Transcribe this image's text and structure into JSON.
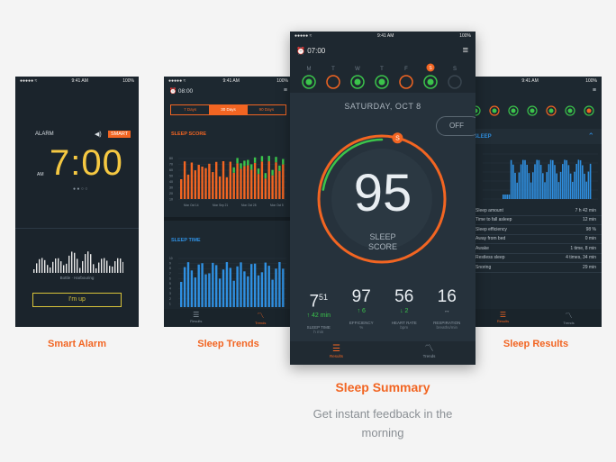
{
  "alarm": {
    "status_time": "9:41 AM",
    "battery": "100%",
    "alarm_label": "ALARM",
    "smart_badge": "SMART",
    "time": "7:00",
    "ampm": "AM",
    "waveform_label": "Bottle · Harbouring",
    "up_button": "I'm up"
  },
  "trends": {
    "status_time": "9:41 AM",
    "battery": "100%",
    "alarm_time": "08:00",
    "tabs": [
      "7 Days",
      "30 Days",
      "90 Days"
    ],
    "score_title": "SLEEP SCORE",
    "time_title": "SLEEP TIME",
    "score_y": [
      "80",
      "70",
      "60",
      "50",
      "40",
      "30",
      "20",
      "10"
    ],
    "score_x": [
      "Mon Oct 14",
      "Mon Sep 21",
      "Mon Oct 28",
      "Mon Oct 5"
    ],
    "time_y": [
      "10",
      "9",
      "8",
      "7",
      "6",
      "5",
      "4",
      "3",
      "2",
      "1"
    ],
    "nav": [
      "Results",
      "Trends"
    ]
  },
  "summary": {
    "status_time": "9:41 AM",
    "battery": "100%",
    "alarm_time": "07:00",
    "days": [
      "M",
      "T",
      "W",
      "T",
      "F",
      "S",
      "S"
    ],
    "day_badge": "S",
    "date": "SATURDAY, OCT 8",
    "toggle": "OFF",
    "score": "95",
    "score_label_1": "SLEEP",
    "score_label_2": "SCORE",
    "stats": [
      {
        "main": "7",
        "sup": "51",
        "delta": "↑ 42 min",
        "label": "SLEEP TIME",
        "unit": "h min"
      },
      {
        "main": "97",
        "sup": "",
        "delta": "↑ 6",
        "label": "EFFICIENCY",
        "unit": "%"
      },
      {
        "main": "56",
        "sup": "",
        "delta": "↓ 2",
        "label": "HEART RATE",
        "unit": "bpm"
      },
      {
        "main": "16",
        "sup": "",
        "delta": "↔",
        "label": "RESPIRATION",
        "unit": "breaths/min"
      }
    ],
    "nav": [
      "Results",
      "Trends"
    ]
  },
  "results": {
    "status_time": "9:41 AM",
    "battery": "100%",
    "section_title": "SLEEP",
    "rows": [
      {
        "label": "Sleep amount",
        "value": "7 h 42 min"
      },
      {
        "label": "Time to fall asleep",
        "value": "12 min"
      },
      {
        "label": "Sleep efficiency",
        "value": "98 %"
      },
      {
        "label": "Away from bed",
        "value": "0 min"
      },
      {
        "label": "Awake",
        "value": "1 time, 8 min"
      },
      {
        "label": "Restless sleep",
        "value": "4 times, 34 min"
      },
      {
        "label": "Snoring",
        "value": "29 min"
      }
    ],
    "nav": [
      "Results",
      "Trends"
    ]
  },
  "captions": {
    "alarm": "Smart Alarm",
    "trends": "Sleep Trends",
    "summary": "Sleep Summary",
    "results": "Sleep Results",
    "tagline_1": "Get instant feedback in the",
    "tagline_2": "morning"
  },
  "colors": {
    "accent": "#f26522",
    "green": "#3bc44b",
    "blue": "#2f8fe0",
    "alarm_yellow": "#f5c842",
    "bg": "#f4f4f4"
  }
}
